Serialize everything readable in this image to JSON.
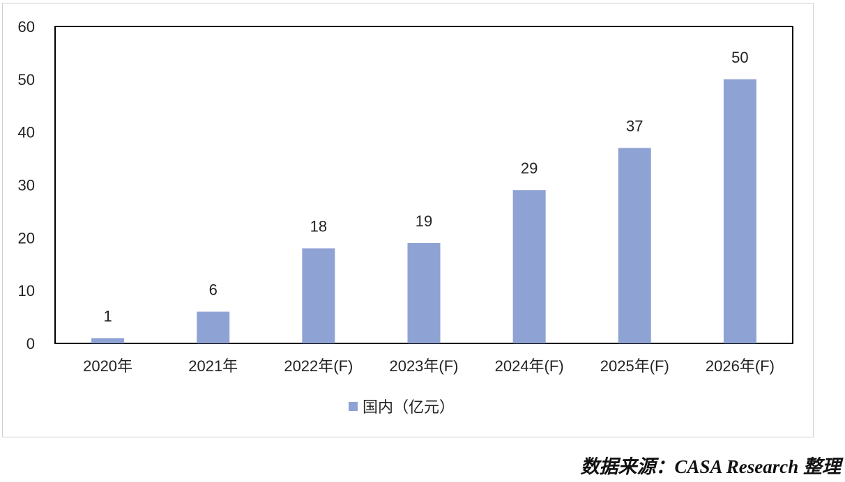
{
  "chart_data": {
    "type": "bar",
    "categories": [
      "2020年",
      "2021年",
      "2022年(F)",
      "2023年(F)",
      "2024年(F)",
      "2025年(F)",
      "2026年(F)"
    ],
    "series": [
      {
        "name": "国内（亿元）",
        "values": [
          1,
          6,
          18,
          19,
          29,
          37,
          50
        ],
        "color": "#8fa2d4"
      }
    ],
    "data_labels": [
      "1",
      "6",
      "18",
      "19",
      "29",
      "37",
      "50"
    ],
    "ylim": [
      0,
      60
    ],
    "yticks": [
      0,
      10,
      20,
      30,
      40,
      50,
      60
    ],
    "grid": false,
    "legend_position": "bottom"
  },
  "source_note": "数据来源：CASA Research 整理"
}
